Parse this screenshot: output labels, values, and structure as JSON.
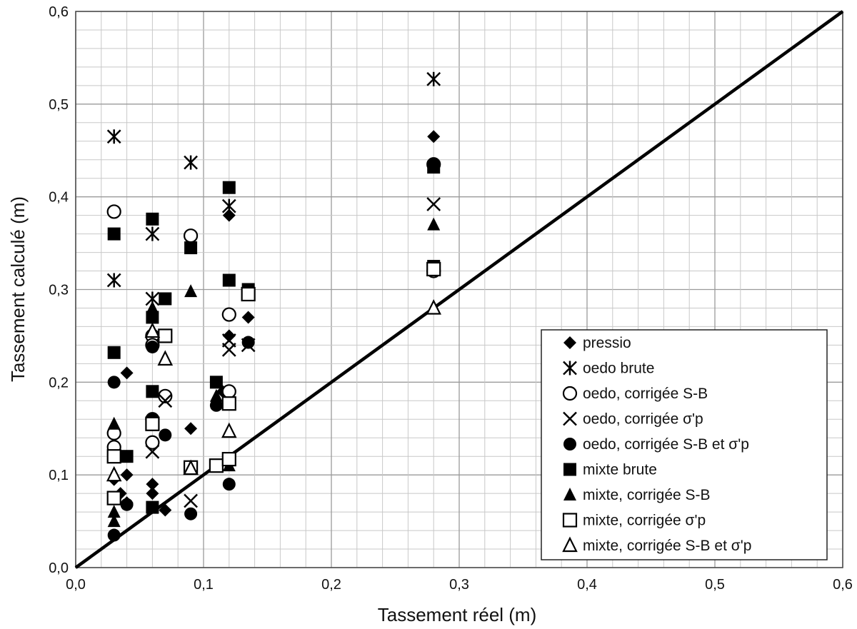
{
  "chart_data": {
    "type": "scatter",
    "xlabel": "Tassement réel  (m)",
    "ylabel": "Tassement calculé (m)",
    "xlim": [
      0,
      0.6
    ],
    "ylim": [
      0,
      0.6
    ],
    "x_ticks": [
      "0,0",
      "0,1",
      "0,2",
      "0,3",
      "0,4",
      "0,5",
      "0,6"
    ],
    "y_ticks": [
      "0,0",
      "0,1",
      "0,2",
      "0,3",
      "0,4",
      "0,5",
      "0,6"
    ],
    "major_step": 0.1,
    "minor_step": 0.02,
    "grid": true,
    "legend_position": "bottom-right",
    "reference_line": {
      "x": [
        0,
        0.6
      ],
      "y": [
        0,
        0.6
      ]
    },
    "series": [
      {
        "name": "pressio",
        "marker": "diamond",
        "points": [
          [
            0.03,
            0.2
          ],
          [
            0.04,
            0.21
          ],
          [
            0.04,
            0.12
          ],
          [
            0.04,
            0.1
          ],
          [
            0.03,
            0.095
          ],
          [
            0.035,
            0.08
          ],
          [
            0.04,
            0.07
          ],
          [
            0.06,
            0.09
          ],
          [
            0.06,
            0.08
          ],
          [
            0.07,
            0.062
          ],
          [
            0.09,
            0.15
          ],
          [
            0.12,
            0.38
          ],
          [
            0.135,
            0.27
          ],
          [
            0.115,
            0.19
          ],
          [
            0.12,
            0.25
          ],
          [
            0.28,
            0.465
          ]
        ]
      },
      {
        "name": "oedo brute",
        "marker": "asterisk",
        "points": [
          [
            0.03,
            0.465
          ],
          [
            0.03,
            0.31
          ],
          [
            0.06,
            0.36
          ],
          [
            0.06,
            0.29
          ],
          [
            0.09,
            0.437
          ],
          [
            0.12,
            0.39
          ],
          [
            0.28,
            0.527
          ]
        ]
      },
      {
        "name": "oedo, corrigée S-B",
        "marker": "circle-open",
        "points": [
          [
            0.03,
            0.384
          ],
          [
            0.03,
            0.145
          ],
          [
            0.03,
            0.13
          ],
          [
            0.06,
            0.25
          ],
          [
            0.06,
            0.24
          ],
          [
            0.06,
            0.16
          ],
          [
            0.06,
            0.135
          ],
          [
            0.07,
            0.185
          ],
          [
            0.09,
            0.358
          ],
          [
            0.12,
            0.273
          ],
          [
            0.12,
            0.19
          ],
          [
            0.28,
            0.435
          ],
          [
            0.28,
            0.32
          ]
        ]
      },
      {
        "name": "oedo, corrigée σ'p",
        "marker": "x",
        "points": [
          [
            0.03,
            0.12
          ],
          [
            0.06,
            0.125
          ],
          [
            0.07,
            0.18
          ],
          [
            0.09,
            0.072
          ],
          [
            0.12,
            0.235
          ],
          [
            0.12,
            0.245
          ],
          [
            0.135,
            0.24
          ],
          [
            0.28,
            0.392
          ]
        ]
      },
      {
        "name": "oedo, corrigée S-B et σ'p",
        "marker": "circle-filled",
        "points": [
          [
            0.03,
            0.2
          ],
          [
            0.03,
            0.035
          ],
          [
            0.04,
            0.068
          ],
          [
            0.06,
            0.16
          ],
          [
            0.06,
            0.238
          ],
          [
            0.07,
            0.143
          ],
          [
            0.09,
            0.058
          ],
          [
            0.11,
            0.175
          ],
          [
            0.12,
            0.09
          ],
          [
            0.135,
            0.243
          ],
          [
            0.28,
            0.435
          ]
        ]
      },
      {
        "name": "mixte brute",
        "marker": "square-filled",
        "points": [
          [
            0.03,
            0.36
          ],
          [
            0.03,
            0.232
          ],
          [
            0.04,
            0.12
          ],
          [
            0.06,
            0.376
          ],
          [
            0.06,
            0.27
          ],
          [
            0.06,
            0.19
          ],
          [
            0.06,
            0.065
          ],
          [
            0.07,
            0.29
          ],
          [
            0.09,
            0.345
          ],
          [
            0.11,
            0.2
          ],
          [
            0.12,
            0.41
          ],
          [
            0.12,
            0.31
          ],
          [
            0.135,
            0.3
          ],
          [
            0.28,
            0.432
          ],
          [
            0.28,
            0.325
          ]
        ]
      },
      {
        "name": "mixte, corrigée S-B",
        "marker": "triangle-filled",
        "points": [
          [
            0.03,
            0.155
          ],
          [
            0.03,
            0.06
          ],
          [
            0.03,
            0.05
          ],
          [
            0.06,
            0.28
          ],
          [
            0.09,
            0.298
          ],
          [
            0.11,
            0.185
          ],
          [
            0.12,
            0.11
          ],
          [
            0.28,
            0.37
          ]
        ]
      },
      {
        "name": "mixte, corrigée σ'p",
        "marker": "square-open",
        "points": [
          [
            0.03,
            0.12
          ],
          [
            0.03,
            0.075
          ],
          [
            0.06,
            0.155
          ],
          [
            0.07,
            0.25
          ],
          [
            0.09,
            0.108
          ],
          [
            0.11,
            0.11
          ],
          [
            0.12,
            0.177
          ],
          [
            0.12,
            0.117
          ],
          [
            0.135,
            0.295
          ],
          [
            0.28,
            0.322
          ]
        ]
      },
      {
        "name": "mixte, corrigée S-B et σ'p",
        "marker": "triangle-open",
        "points": [
          [
            0.03,
            0.1
          ],
          [
            0.06,
            0.255
          ],
          [
            0.07,
            0.225
          ],
          [
            0.09,
            0.107
          ],
          [
            0.12,
            0.147
          ],
          [
            0.28,
            0.28
          ]
        ]
      }
    ]
  }
}
